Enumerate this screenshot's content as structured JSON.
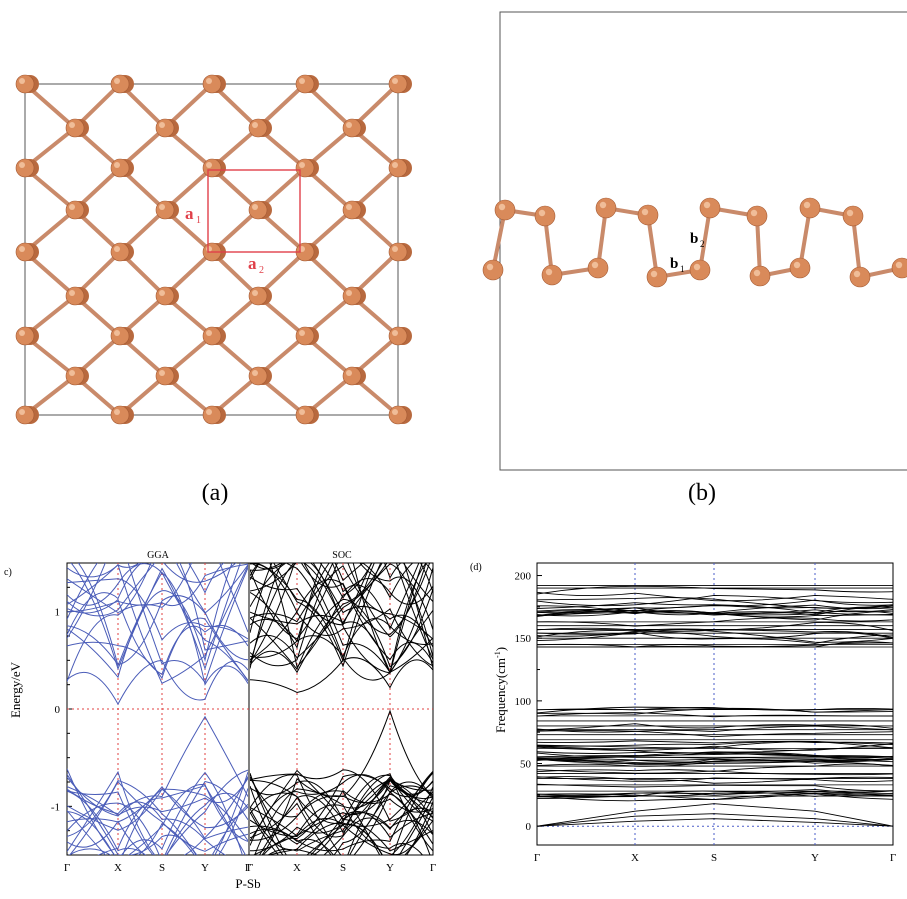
{
  "panels": {
    "a": {
      "label": "(a)",
      "vector_labels": [
        "a",
        "a"
      ],
      "vector_subscripts": [
        "1",
        "2"
      ]
    },
    "b": {
      "label": "(b)",
      "bond_labels": [
        "b",
        "b"
      ],
      "bond_subscripts": [
        "1",
        "2"
      ]
    },
    "c": {
      "label": "c)",
      "xlabel": "P-Sb",
      "ylabel": "Energy/eV"
    },
    "d": {
      "label": "(d)",
      "ylabel": "Frequency(cm",
      "ylabel_sup": "-1",
      "ylabel_close": ")"
    }
  },
  "colors": {
    "atom": "#d98a5a",
    "bond": "#c98a6a",
    "cell": "#e0404a",
    "gga": "#4a5cb8",
    "soc": "#000000",
    "grid": "#e04040",
    "phonon_grid": "#4a5cc8"
  },
  "chart_data": [
    {
      "type": "line",
      "subplot": "GGA",
      "title": "GGA",
      "x_ticks": [
        "Γ",
        "X",
        "S",
        "Y",
        "Γ"
      ],
      "y_ticks": [
        "1",
        "0",
        "-1"
      ],
      "ylim": [
        -1.5,
        1.5
      ],
      "fermi_level": 0,
      "valence_band_max": -0.08,
      "conduction_band_min": 0.0
    },
    {
      "type": "line",
      "subplot": "SOC",
      "title": "SOC",
      "x_ticks": [
        "Γ",
        "X",
        "S",
        "Y",
        "Γ"
      ],
      "ylim": [
        -1.5,
        1.5
      ],
      "fermi_level": 0,
      "valence_band_max": -0.02,
      "conduction_band_min": 0.12
    },
    {
      "type": "line",
      "subplot": "phonon",
      "x_ticks": [
        "Γ",
        "X",
        "S",
        "Y",
        "Γ"
      ],
      "y_ticks": [
        "0",
        "50",
        "100",
        "150",
        "200"
      ],
      "ylim": [
        -15,
        210
      ],
      "optical_high_cm1": [
        143,
        192
      ],
      "optical_mid_cm1": [
        20,
        95
      ],
      "acoustic_max_cm1": 20
    }
  ]
}
